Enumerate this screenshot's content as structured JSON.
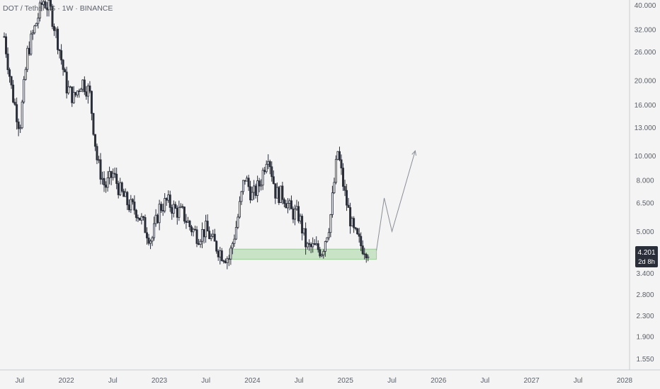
{
  "header": {
    "symbol": "DOT / TetherUS · 1W · BINANCE"
  },
  "price_badge": {
    "price": "4.201",
    "countdown": "2d 8h",
    "color": "#2a2e39"
  },
  "colors": {
    "background": "#f4f4f4",
    "candle": "#2a2e39",
    "support_zone_fill": "#c9e3c6",
    "support_zone_stroke": "#9fcb9b",
    "projection_line": "#8a8e96",
    "axis_text": "#5b6068"
  },
  "chart_data": {
    "type": "candlestick",
    "y_scale": "log",
    "ylim": [
      1.4,
      42
    ],
    "y_ticks": [
      "1.550",
      "1.900",
      "2.300",
      "2.800",
      "3.400",
      "4.201",
      "5.000",
      "6.500",
      "8.000",
      "10.000",
      "13.000",
      "16.000",
      "20.000",
      "26.000",
      "32.000",
      "40.000"
    ],
    "x_ticks": [
      "Jul",
      "2022",
      "Jul",
      "2023",
      "Jul",
      "2024",
      "Jul",
      "2025",
      "Jul",
      "2026",
      "Jul",
      "2027",
      "Jul",
      "2028"
    ],
    "x_range": [
      "2021-05",
      "2028-02"
    ],
    "price_path": [
      [
        "2021-05",
        30
      ],
      [
        "2021-06",
        18
      ],
      [
        "2021-07",
        13
      ],
      [
        "2021-08",
        26
      ],
      [
        "2021-09",
        33
      ],
      [
        "2021-10",
        42
      ],
      [
        "2021-11",
        38
      ],
      [
        "2021-12",
        28
      ],
      [
        "2022-01",
        19
      ],
      [
        "2022-02",
        17
      ],
      [
        "2022-03",
        20
      ],
      [
        "2022-04",
        18
      ],
      [
        "2022-05",
        9.5
      ],
      [
        "2022-06",
        7.5
      ],
      [
        "2022-07",
        8.5
      ],
      [
        "2022-08",
        7.2
      ],
      [
        "2022-09",
        6.4
      ],
      [
        "2022-10",
        6.1
      ],
      [
        "2022-11",
        5.3
      ],
      [
        "2022-12",
        4.6
      ],
      [
        "2023-01",
        6.2
      ],
      [
        "2023-02",
        6.6
      ],
      [
        "2023-03",
        6.1
      ],
      [
        "2023-04",
        5.9
      ],
      [
        "2023-05",
        5.2
      ],
      [
        "2023-06",
        4.8
      ],
      [
        "2023-07",
        5.1
      ],
      [
        "2023-08",
        4.5
      ],
      [
        "2023-09",
        4.1
      ],
      [
        "2023-10",
        3.9
      ],
      [
        "2023-11",
        5.4
      ],
      [
        "2023-12",
        8.3
      ],
      [
        "2024-01",
        6.9
      ],
      [
        "2024-02",
        7.8
      ],
      [
        "2024-03",
        10.5
      ],
      [
        "2024-04",
        7.1
      ],
      [
        "2024-05",
        7.0
      ],
      [
        "2024-06",
        6.0
      ],
      [
        "2024-07",
        5.8
      ],
      [
        "2024-08",
        4.3
      ],
      [
        "2024-09",
        4.3
      ],
      [
        "2024-10",
        4.2
      ],
      [
        "2024-11",
        5.5
      ],
      [
        "2024-12",
        10.5
      ],
      [
        "2025-01",
        6.8
      ],
      [
        "2025-02",
        5.0
      ],
      [
        "2025-03",
        4.4
      ],
      [
        "2025-04",
        4.201
      ]
    ],
    "support_zone": {
      "x": [
        "2023-10",
        "2025-05"
      ],
      "y": [
        3.87,
        4.25
      ]
    },
    "projection": [
      [
        "2025-05",
        4.2
      ],
      [
        "2025-06",
        6.8
      ],
      [
        "2025-07",
        5.0
      ],
      [
        "2025-10",
        10.5
      ]
    ],
    "last_price": 4.201
  }
}
